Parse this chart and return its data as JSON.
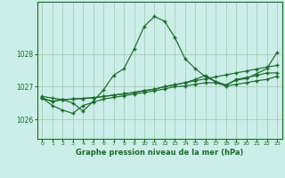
{
  "title": "Graphe pression niveau de la mer (hPa)",
  "bg_color": "#cceee8",
  "grid_color": "#aaccbb",
  "line_color": "#1a6b2a",
  "xlim": [
    -0.5,
    23.5
  ],
  "ylim": [
    1025.4,
    1029.6
  ],
  "yticks": [
    1026,
    1027,
    1028
  ],
  "xtick_labels": [
    "0",
    "1",
    "2",
    "3",
    "4",
    "5",
    "6",
    "7",
    "8",
    "9",
    "10",
    "11",
    "12",
    "13",
    "14",
    "15",
    "16",
    "17",
    "18",
    "19",
    "20",
    "21",
    "22",
    "23"
  ],
  "series": [
    [
      1026.7,
      1026.65,
      1026.6,
      1026.5,
      1026.25,
      1026.55,
      1026.9,
      1027.35,
      1027.55,
      1028.15,
      1028.85,
      1029.15,
      1029.0,
      1028.5,
      1027.85,
      1027.55,
      1027.3,
      1027.15,
      1027.05,
      1027.2,
      1027.25,
      1027.4,
      1027.55,
      1028.05
    ],
    [
      1026.65,
      1026.55,
      1026.6,
      1026.62,
      1026.64,
      1026.66,
      1026.7,
      1026.74,
      1026.78,
      1026.82,
      1026.88,
      1026.92,
      1027.0,
      1027.06,
      1027.12,
      1027.18,
      1027.24,
      1027.3,
      1027.36,
      1027.42,
      1027.48,
      1027.54,
      1027.6,
      1027.65
    ],
    [
      1026.65,
      1026.55,
      1026.6,
      1026.62,
      1026.64,
      1026.66,
      1026.7,
      1026.74,
      1026.78,
      1026.82,
      1026.88,
      1026.92,
      1027.0,
      1027.06,
      1027.12,
      1027.22,
      1027.35,
      1027.15,
      1027.05,
      1027.22,
      1027.28,
      1027.34,
      1027.42,
      1027.42
    ],
    [
      1026.65,
      1026.42,
      1026.28,
      1026.18,
      1026.42,
      1026.52,
      1026.62,
      1026.67,
      1026.72,
      1026.77,
      1026.82,
      1026.87,
      1026.93,
      1027.0,
      1027.02,
      1027.07,
      1027.12,
      1027.12,
      1027.02,
      1027.07,
      1027.12,
      1027.18,
      1027.22,
      1027.32
    ]
  ]
}
